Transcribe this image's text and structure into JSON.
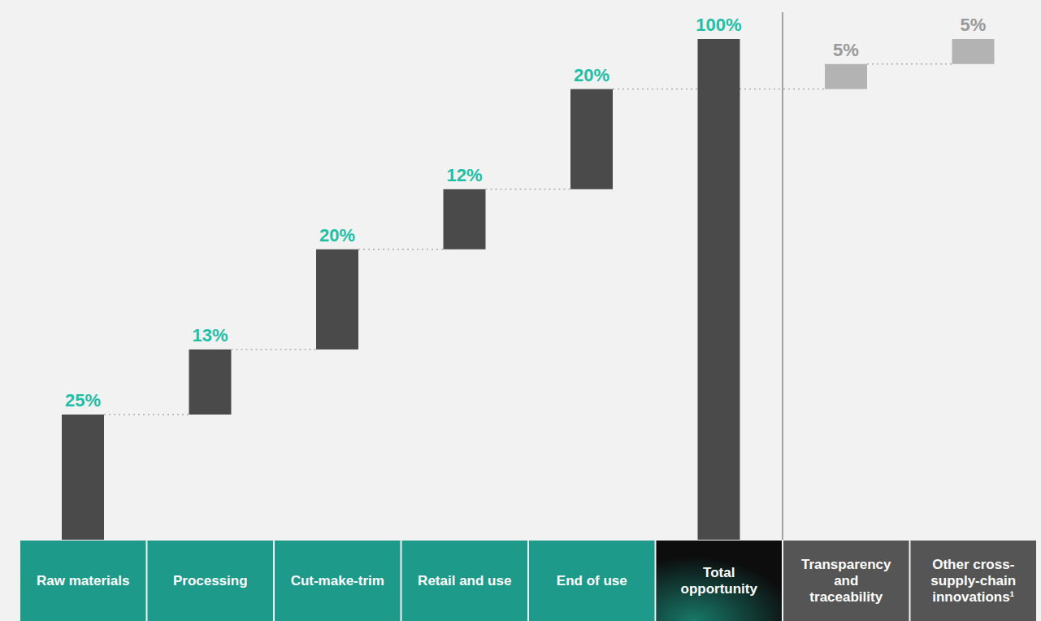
{
  "chart_data": {
    "type": "waterfall",
    "categories": [
      "Raw materials",
      "Processing",
      "Cut-make-trim",
      "Retail and use",
      "End of use",
      "Total opportunity",
      "Transparency and traceability",
      "Other cross-supply-chain innovations¹"
    ],
    "series": [
      {
        "type": "waterfall",
        "colors": [
          "#4a4a4a",
          "#4a4a4a",
          "#4a4a4a",
          "#4a4a4a",
          "#4a4a4a",
          null,
          "#b3b3b3",
          "#b3b3b3"
        ],
        "values": [
          25,
          13,
          20,
          12,
          20,
          null,
          5,
          5
        ],
        "value_labels": [
          "25%",
          "13%",
          "20%",
          "12%",
          "20%",
          null,
          "5%",
          "5%"
        ]
      },
      {
        "type": "bar",
        "color": "#4a4a4a",
        "values": [
          null,
          null,
          null,
          null,
          null,
          100,
          null,
          null
        ],
        "value_labels": [
          null,
          null,
          null,
          null,
          null,
          "100%",
          null,
          null
        ]
      }
    ],
    "data_labels": true,
    "tick_labels": "x",
    "grid": false
  }
}
